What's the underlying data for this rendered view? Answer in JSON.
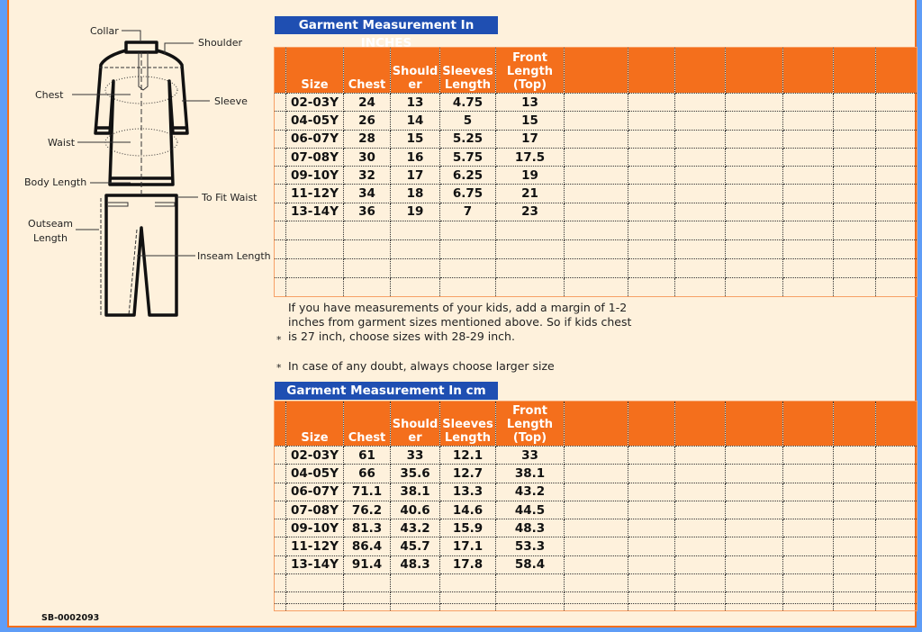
{
  "diagram": {
    "labels": {
      "collar": "Collar",
      "shoulder": "Shoulder",
      "chest": "Chest",
      "sleeve": "Sleeve",
      "waist": "Waist",
      "body_length": "Body Length",
      "to_fit_waist": "To Fit Waist",
      "outseam": "Outseam Length",
      "inseam": "Inseam Length"
    }
  },
  "inches": {
    "title": "Garment Measurement In INCHES",
    "headers": [
      "Size",
      "Chest",
      "Shoulder",
      "Sleeves Length",
      "Front Length (Top)"
    ],
    "header_display": [
      "Size",
      "Chest",
      "Should er",
      "Sleeves Length",
      "Front Length (Top)"
    ],
    "rows": [
      [
        "02-03Y",
        "24",
        "13",
        "4.75",
        "13"
      ],
      [
        "04-05Y",
        "26",
        "14",
        "5",
        "15"
      ],
      [
        "06-07Y",
        "28",
        "15",
        "5.25",
        "17"
      ],
      [
        "07-08Y",
        "30",
        "16",
        "5.75",
        "17.5"
      ],
      [
        "09-10Y",
        "32",
        "17",
        "6.25",
        "19"
      ],
      [
        "11-12Y",
        "34",
        "18",
        "6.75",
        "21"
      ],
      [
        "13-14Y",
        "36",
        "19",
        "7",
        "23"
      ]
    ]
  },
  "cm": {
    "title": "Garment Measurement In cm",
    "headers": [
      "Size",
      "Chest",
      "Shoulder",
      "Sleeves Length",
      "Front Length (Top)"
    ],
    "header_display": [
      "Size",
      "Chest",
      "Should er",
      "Sleeves Length",
      "Front Length (Top)"
    ],
    "rows": [
      [
        "02-03Y",
        "61",
        "33",
        "12.1",
        "33"
      ],
      [
        "04-05Y",
        "66",
        "35.6",
        "12.7",
        "38.1"
      ],
      [
        "06-07Y",
        "71.1",
        "38.1",
        "13.3",
        "43.2"
      ],
      [
        "07-08Y",
        "76.2",
        "40.6",
        "14.6",
        "44.5"
      ],
      [
        "09-10Y",
        "81.3",
        "43.2",
        "15.9",
        "48.3"
      ],
      [
        "11-12Y",
        "86.4",
        "45.7",
        "17.1",
        "53.3"
      ],
      [
        "13-14Y",
        "91.4",
        "48.3",
        "17.8",
        "58.4"
      ]
    ]
  },
  "notes": [
    "If you have measurements of your kids, add a margin of 1-2 inches from garment sizes mentioned above. So if kids chest is 27 inch, choose sizes with 28-29 inch.",
    "In case of any doubt, always choose larger size"
  ],
  "bullet": "*",
  "code": "SB-0002093",
  "colors": {
    "header": "#f46f1c",
    "title_bar": "#1f4fb2",
    "background": "#fef1dc",
    "frame": "#5f9df7"
  }
}
